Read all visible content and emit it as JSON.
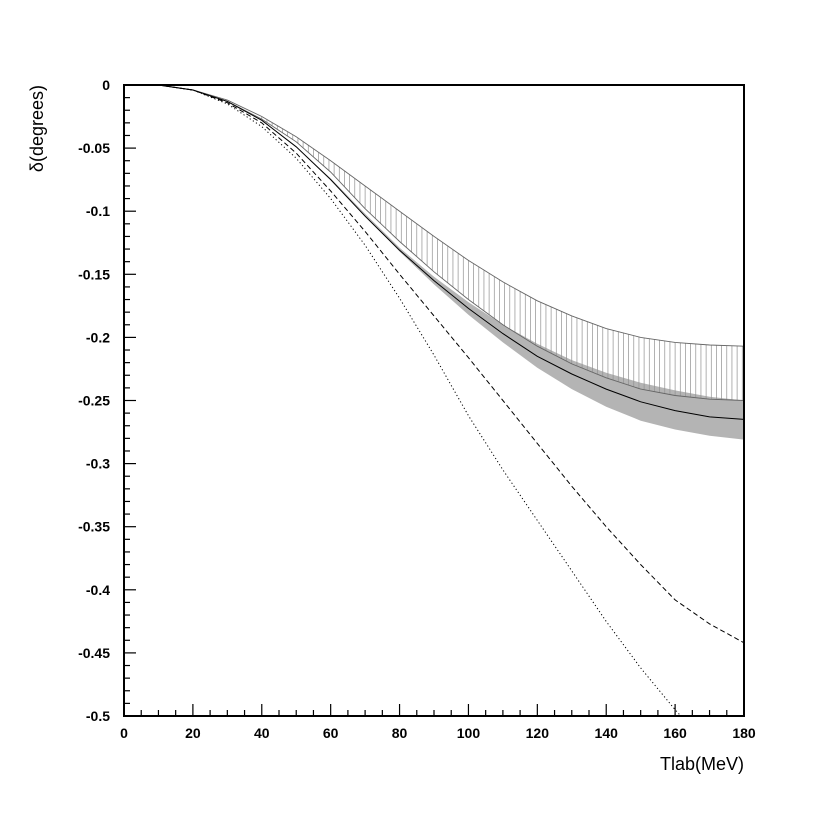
{
  "chart_data": {
    "type": "line",
    "title": "",
    "xlabel": "Tlab(MeV)",
    "ylabel": "δ(degrees)",
    "xlim": [
      0,
      180
    ],
    "ylim": [
      -0.5,
      0
    ],
    "xticks": [
      0,
      20,
      40,
      60,
      80,
      100,
      120,
      140,
      160,
      180
    ],
    "xtick_labels": [
      "0",
      "20",
      "40",
      "60",
      "80",
      "100",
      "120",
      "140",
      "160",
      "180"
    ],
    "yticks": [
      0,
      -0.05,
      -0.1,
      -0.15,
      -0.2,
      -0.25,
      -0.3,
      -0.35,
      -0.4,
      -0.45,
      -0.5
    ],
    "ytick_labels": [
      "0",
      "-0.05",
      "-0.1",
      "-0.15",
      "-0.2",
      "-0.25",
      "-0.3",
      "-0.35",
      "-0.4",
      "-0.45",
      "-0.5"
    ],
    "grid": false,
    "x": [
      0,
      10,
      20,
      30,
      40,
      50,
      60,
      70,
      80,
      90,
      100,
      110,
      120,
      130,
      140,
      150,
      160,
      170,
      180
    ],
    "series": [
      {
        "style": "solid",
        "color": "#000000",
        "values": [
          0,
          0,
          -0.004,
          -0.013,
          -0.028,
          -0.049,
          -0.075,
          -0.104,
          -0.131,
          -0.155,
          -0.177,
          -0.197,
          -0.215,
          -0.229,
          -0.241,
          -0.251,
          -0.258,
          -0.263,
          -0.265
        ]
      },
      {
        "style": "dashed",
        "color": "#000000",
        "values": [
          0,
          0,
          -0.004,
          -0.014,
          -0.03,
          -0.054,
          -0.084,
          -0.116,
          -0.15,
          -0.183,
          -0.216,
          -0.25,
          -0.284,
          -0.318,
          -0.35,
          -0.38,
          -0.408,
          -0.427,
          -0.442
        ]
      },
      {
        "style": "dotted",
        "color": "#000000",
        "values": [
          0,
          0,
          -0.004,
          -0.015,
          -0.033,
          -0.058,
          -0.09,
          -0.127,
          -0.169,
          -0.214,
          -0.262,
          -0.305,
          -0.345,
          -0.385,
          -0.425,
          -0.462,
          -0.495,
          -0.525,
          -0.555
        ]
      }
    ],
    "bands": [
      {
        "style": "gray-fill",
        "color": "#b4b4b4",
        "lower": [
          0,
          0,
          -0.004,
          -0.013,
          -0.028,
          -0.049,
          -0.075,
          -0.104,
          -0.132,
          -0.158,
          -0.182,
          -0.204,
          -0.224,
          -0.241,
          -0.255,
          -0.266,
          -0.273,
          -0.278,
          -0.281
        ],
        "upper": [
          0,
          0,
          -0.004,
          -0.013,
          -0.028,
          -0.049,
          -0.074,
          -0.102,
          -0.129,
          -0.152,
          -0.172,
          -0.19,
          -0.205,
          -0.218,
          -0.228,
          -0.236,
          -0.242,
          -0.247,
          -0.25
        ]
      },
      {
        "style": "vertical-hatch",
        "color": "#909090",
        "lower": [
          0,
          0,
          -0.004,
          -0.013,
          -0.027,
          -0.045,
          -0.069,
          -0.098,
          -0.124,
          -0.148,
          -0.17,
          -0.19,
          -0.207,
          -0.221,
          -0.232,
          -0.241,
          -0.246,
          -0.249,
          -0.25
        ],
        "upper": [
          0,
          0,
          -0.004,
          -0.012,
          -0.025,
          -0.041,
          -0.06,
          -0.08,
          -0.1,
          -0.12,
          -0.139,
          -0.156,
          -0.171,
          -0.183,
          -0.193,
          -0.2,
          -0.204,
          -0.206,
          -0.207
        ]
      }
    ]
  }
}
